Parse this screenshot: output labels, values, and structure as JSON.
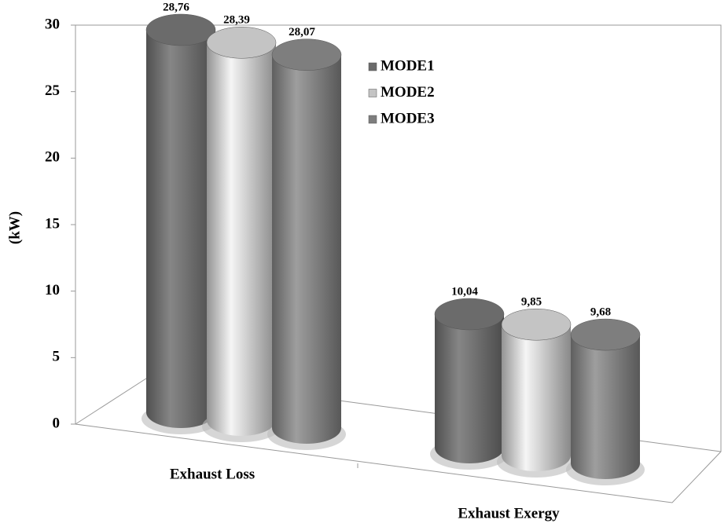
{
  "chart_data": {
    "type": "bar",
    "y_label": "(kW)",
    "categories": [
      "Exhaust Loss",
      "Exhaust Exergy"
    ],
    "series": [
      {
        "name": "MODE1",
        "color": "#6b6b6b",
        "values": [
          28.76,
          10.04
        ],
        "value_labels": [
          "28,76",
          "10,04"
        ]
      },
      {
        "name": "MODE2",
        "color": "#c4c4c4",
        "values": [
          28.39,
          9.85
        ],
        "value_labels": [
          "28,39",
          "9,85"
        ]
      },
      {
        "name": "MODE3",
        "color": "#7e7e7e",
        "values": [
          28.07,
          9.68
        ],
        "value_labels": [
          "28,07",
          "9,68"
        ]
      }
    ],
    "ylim": [
      0,
      30
    ],
    "yticks": [
      0,
      5,
      10,
      15,
      20,
      25,
      30
    ],
    "grid": false,
    "legend": "top-center"
  }
}
